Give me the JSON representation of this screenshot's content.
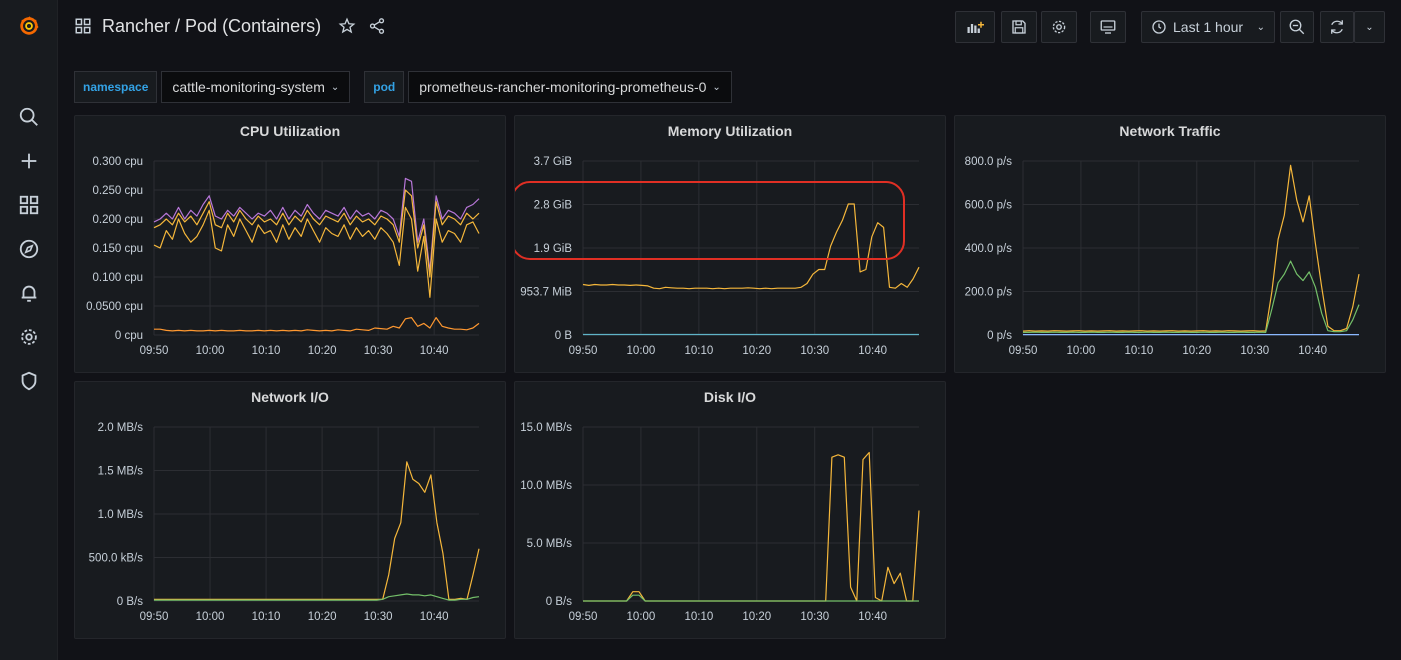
{
  "dashboard": {
    "title": "Rancher / Pod (Containers)"
  },
  "toolbar": {
    "time_range": "Last 1 hour"
  },
  "variables": [
    {
      "label": "namespace",
      "value": "cattle-monitoring-system"
    },
    {
      "label": "pod",
      "value": "prometheus-rancher-monitoring-prometheus-0"
    }
  ],
  "colors": {
    "accent": "#f5b73b",
    "purple": "#b877d9",
    "orange": "#ff9830",
    "green": "#73bf69",
    "cyan": "#5fb3c7",
    "grid": "#2c2e33",
    "highlight": "#e02f24"
  },
  "panels": [
    {
      "title": "CPU Utilization"
    },
    {
      "title": "Memory Utilization"
    },
    {
      "title": "Network Traffic"
    },
    {
      "title": "Network I/O"
    },
    {
      "title": "Disk I/O"
    }
  ],
  "chart_data": [
    {
      "type": "line",
      "title": "CPU Utilization",
      "x_ticks": [
        "09:50",
        "10:00",
        "10:10",
        "10:20",
        "10:30",
        "10:40"
      ],
      "x_range": [
        "09:50",
        "10:48"
      ],
      "y_ticks": [
        "0 cpu",
        "0.0500 cpu",
        "0.100 cpu",
        "0.150 cpu",
        "0.200 cpu",
        "0.250 cpu",
        "0.300 cpu"
      ],
      "ylim": [
        0,
        0.3
      ],
      "grid": true,
      "series": [
        {
          "color": "#b877d9",
          "values": [
            0.195,
            0.2,
            0.21,
            0.2,
            0.22,
            0.2,
            0.215,
            0.205,
            0.225,
            0.24,
            0.205,
            0.2,
            0.215,
            0.205,
            0.22,
            0.21,
            0.2,
            0.21,
            0.205,
            0.215,
            0.2,
            0.22,
            0.2,
            0.215,
            0.205,
            0.225,
            0.21,
            0.2,
            0.215,
            0.21,
            0.205,
            0.22,
            0.2,
            0.215,
            0.205,
            0.21,
            0.2,
            0.215,
            0.21,
            0.2,
            0.17,
            0.27,
            0.265,
            0.16,
            0.2,
            0.11,
            0.24,
            0.2,
            0.215,
            0.21,
            0.2,
            0.22,
            0.225,
            0.235
          ]
        },
        {
          "color": "#f5b73b",
          "values": [
            0.185,
            0.19,
            0.2,
            0.19,
            0.21,
            0.195,
            0.205,
            0.19,
            0.21,
            0.23,
            0.19,
            0.185,
            0.21,
            0.195,
            0.215,
            0.2,
            0.19,
            0.205,
            0.195,
            0.2,
            0.19,
            0.21,
            0.19,
            0.205,
            0.195,
            0.215,
            0.2,
            0.19,
            0.205,
            0.2,
            0.195,
            0.21,
            0.19,
            0.205,
            0.195,
            0.2,
            0.19,
            0.205,
            0.2,
            0.19,
            0.16,
            0.25,
            0.24,
            0.15,
            0.19,
            0.1,
            0.23,
            0.19,
            0.205,
            0.2,
            0.19,
            0.21,
            0.2,
            0.21
          ]
        },
        {
          "color": "#f5b73b",
          "values": [
            0.155,
            0.15,
            0.18,
            0.165,
            0.2,
            0.175,
            0.16,
            0.17,
            0.19,
            0.215,
            0.15,
            0.145,
            0.19,
            0.17,
            0.2,
            0.18,
            0.16,
            0.19,
            0.175,
            0.18,
            0.16,
            0.19,
            0.165,
            0.185,
            0.17,
            0.2,
            0.18,
            0.16,
            0.185,
            0.175,
            0.17,
            0.19,
            0.165,
            0.185,
            0.17,
            0.18,
            0.165,
            0.185,
            0.175,
            0.16,
            0.12,
            0.22,
            0.2,
            0.11,
            0.17,
            0.065,
            0.2,
            0.16,
            0.18,
            0.175,
            0.16,
            0.19,
            0.195,
            0.175
          ]
        },
        {
          "color": "#ff9830",
          "values": [
            0.01,
            0.01,
            0.008,
            0.007,
            0.008,
            0.007,
            0.008,
            0.007,
            0.007,
            0.008,
            0.007,
            0.008,
            0.007,
            0.007,
            0.008,
            0.007,
            0.007,
            0.008,
            0.007,
            0.008,
            0.007,
            0.008,
            0.007,
            0.008,
            0.007,
            0.009,
            0.008,
            0.007,
            0.008,
            0.007,
            0.009,
            0.008,
            0.007,
            0.01,
            0.009,
            0.008,
            0.012,
            0.011,
            0.01,
            0.015,
            0.012,
            0.028,
            0.03,
            0.015,
            0.02,
            0.012,
            0.03,
            0.015,
            0.012,
            0.01,
            0.01,
            0.009,
            0.012,
            0.02
          ]
        }
      ]
    },
    {
      "type": "line",
      "title": "Memory Utilization",
      "x_ticks": [
        "09:50",
        "10:00",
        "10:10",
        "10:20",
        "10:30",
        "10:40"
      ],
      "x_range": [
        "09:50",
        "10:48"
      ],
      "y_ticks": [
        "0 B",
        "953.7 MiB",
        "1.9 GiB",
        "2.8 GiB",
        "3.7 GiB"
      ],
      "ylim": [
        0,
        3.72
      ],
      "grid": true,
      "annotations": [
        {
          "type": "highlight-box",
          "around": "peak 1.9 GiB – 2.8 GiB region"
        }
      ],
      "series": [
        {
          "color": "#f5b73b",
          "values": [
            1.08,
            1.06,
            1.08,
            1.07,
            1.07,
            1.08,
            1.07,
            1.07,
            1.06,
            1.07,
            1.06,
            1.05,
            1.0,
            0.99,
            1.02,
            1.01,
            1.0,
            1.0,
            0.99,
            1.0,
            1.0,
            1.0,
            0.99,
            1.0,
            0.99,
            1.0,
            1.0,
            1.0,
            1.01,
            1.0,
            0.99,
            1.0,
            0.99,
            1.0,
            1.0,
            1.0,
            1.0,
            1.02,
            1.1,
            1.3,
            1.4,
            1.4,
            1.9,
            2.2,
            2.45,
            2.8,
            2.8,
            1.35,
            1.4,
            2.1,
            2.4,
            2.3,
            1.02,
            1.0,
            1.1,
            1.02,
            1.2,
            1.45
          ]
        },
        {
          "color": "#5fb3c7",
          "values": [
            0.01,
            0.01,
            0.01,
            0.01,
            0.01,
            0.01,
            0.01,
            0.01,
            0.01,
            0.01
          ]
        }
      ]
    },
    {
      "type": "line",
      "title": "Network Traffic",
      "x_ticks": [
        "09:50",
        "10:00",
        "10:10",
        "10:20",
        "10:30",
        "10:40"
      ],
      "x_range": [
        "09:50",
        "10:48"
      ],
      "y_ticks": [
        "0 p/s",
        "200.0 p/s",
        "400.0 p/s",
        "600.0 p/s",
        "800.0 p/s"
      ],
      "ylim": [
        0,
        800
      ],
      "grid": true,
      "series": [
        {
          "color": "#f5b73b",
          "values": [
            18,
            20,
            18,
            19,
            18,
            20,
            19,
            18,
            19,
            20,
            18,
            19,
            18,
            19,
            20,
            18,
            19,
            18,
            19,
            20,
            18,
            19,
            18,
            19,
            20,
            18,
            19,
            18,
            19,
            20,
            18,
            19,
            18,
            20,
            19,
            18,
            19,
            20,
            18,
            19,
            200,
            440,
            550,
            780,
            620,
            520,
            640,
            420,
            220,
            40,
            20,
            20,
            30,
            130,
            280
          ]
        },
        {
          "color": "#73bf69",
          "values": [
            12,
            12,
            13,
            12,
            12,
            13,
            12,
            12,
            13,
            12,
            12,
            13,
            12,
            12,
            13,
            12,
            12,
            13,
            12,
            12,
            13,
            12,
            12,
            13,
            12,
            12,
            13,
            12,
            12,
            13,
            12,
            12,
            13,
            12,
            12,
            13,
            12,
            12,
            13,
            12,
            120,
            240,
            280,
            340,
            280,
            250,
            290,
            220,
            100,
            20,
            15,
            15,
            20,
            70,
            140
          ]
        },
        {
          "color": "#8ab8ff",
          "values": [
            2,
            2,
            2,
            2,
            2,
            2,
            2,
            2,
            2,
            2
          ]
        }
      ]
    },
    {
      "type": "line",
      "title": "Network I/O",
      "x_ticks": [
        "09:50",
        "10:00",
        "10:10",
        "10:20",
        "10:30",
        "10:40"
      ],
      "x_range": [
        "09:50",
        "10:48"
      ],
      "y_ticks": [
        "0 B/s",
        "500.0 kB/s",
        "1.0 MB/s",
        "1.5 MB/s",
        "2.0 MB/s"
      ],
      "ylim": [
        0,
        2.0
      ],
      "grid": true,
      "series": [
        {
          "color": "#f5b73b",
          "values": [
            0.02,
            0.02,
            0.02,
            0.02,
            0.02,
            0.02,
            0.02,
            0.02,
            0.02,
            0.02,
            0.02,
            0.02,
            0.02,
            0.02,
            0.02,
            0.02,
            0.02,
            0.02,
            0.02,
            0.02,
            0.02,
            0.02,
            0.02,
            0.02,
            0.02,
            0.02,
            0.02,
            0.02,
            0.02,
            0.02,
            0.02,
            0.02,
            0.02,
            0.02,
            0.02,
            0.02,
            0.02,
            0.02,
            0.02,
            0.3,
            0.72,
            0.9,
            1.6,
            1.4,
            1.35,
            1.25,
            1.45,
            0.9,
            0.55,
            0.02,
            0.02,
            0.03,
            0.02,
            0.3,
            0.6
          ]
        },
        {
          "color": "#73bf69",
          "values": [
            0.01,
            0.01,
            0.01,
            0.01,
            0.01,
            0.01,
            0.01,
            0.01,
            0.01,
            0.01,
            0.01,
            0.01,
            0.01,
            0.01,
            0.01,
            0.01,
            0.01,
            0.01,
            0.01,
            0.01,
            0.01,
            0.01,
            0.01,
            0.01,
            0.01,
            0.01,
            0.01,
            0.01,
            0.01,
            0.01,
            0.01,
            0.01,
            0.01,
            0.01,
            0.01,
            0.01,
            0.01,
            0.01,
            0.02,
            0.05,
            0.06,
            0.07,
            0.08,
            0.07,
            0.07,
            0.06,
            0.07,
            0.05,
            0.03,
            0.01,
            0.01,
            0.02,
            0.02,
            0.04,
            0.05
          ]
        }
      ]
    },
    {
      "type": "line",
      "title": "Disk I/O",
      "x_ticks": [
        "09:50",
        "10:00",
        "10:10",
        "10:20",
        "10:30",
        "10:40"
      ],
      "x_range": [
        "09:50",
        "10:48"
      ],
      "y_ticks": [
        "0 B/s",
        "5.0 MB/s",
        "10.0 MB/s",
        "15.0 MB/s"
      ],
      "ylim": [
        0,
        15
      ],
      "grid": true,
      "series": [
        {
          "color": "#f5b73b",
          "values": [
            0,
            0,
            0,
            0,
            0,
            0,
            0,
            0,
            0.8,
            0.8,
            0,
            0,
            0,
            0,
            0,
            0,
            0,
            0,
            0,
            0,
            0,
            0,
            0,
            0,
            0,
            0,
            0,
            0,
            0,
            0,
            0,
            0,
            0,
            0,
            0,
            0,
            0,
            0,
            0,
            0,
            12.4,
            12.6,
            12.4,
            1.2,
            0,
            12.2,
            12.8,
            0.3,
            0,
            2.9,
            1.5,
            2.4,
            0,
            0,
            7.8
          ]
        },
        {
          "color": "#73bf69",
          "values": [
            0,
            0,
            0,
            0,
            0,
            0,
            0,
            0,
            0.5,
            0.5,
            0,
            0,
            0,
            0,
            0,
            0,
            0,
            0,
            0,
            0,
            0,
            0,
            0,
            0,
            0,
            0,
            0,
            0,
            0,
            0,
            0,
            0,
            0,
            0,
            0,
            0,
            0,
            0,
            0,
            0,
            0,
            0,
            0,
            0,
            0,
            0,
            0,
            0,
            0,
            0,
            0,
            0,
            0,
            0,
            0
          ]
        }
      ]
    }
  ]
}
